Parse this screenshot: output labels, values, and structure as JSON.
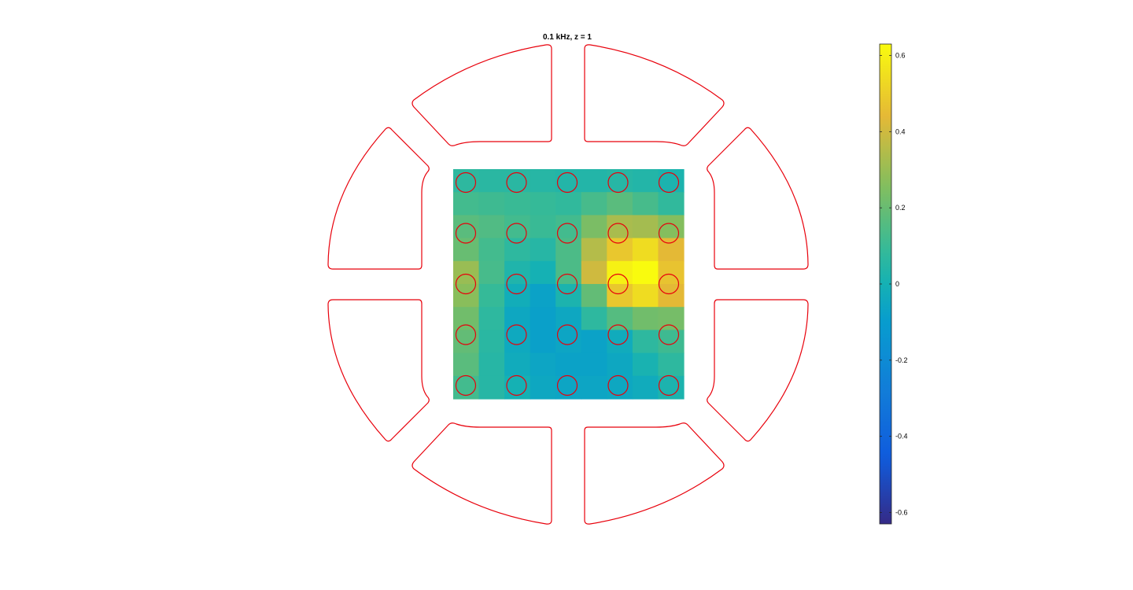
{
  "chart_data": {
    "type": "heatmap",
    "title": "0.1 kHz, z = 1",
    "xlabel": "",
    "ylabel": "",
    "grid": false,
    "clim": [
      -0.63,
      0.63
    ],
    "colormap": "parula",
    "colorbar": {
      "location": "right",
      "ticks": [
        0.6,
        0.4,
        0.2,
        0,
        -0.2,
        -0.4,
        -0.6
      ],
      "tick_labels": [
        "0.6",
        "0.4",
        "0.2",
        "0",
        "-0.2",
        "-0.4",
        "-0.6"
      ]
    },
    "values": [
      [
        0.07,
        0.06,
        0.06,
        0.05,
        0.04,
        0.04,
        0.05,
        0.04,
        0.02
      ],
      [
        0.12,
        0.11,
        0.1,
        0.09,
        0.08,
        0.13,
        0.17,
        0.13,
        0.08
      ],
      [
        0.17,
        0.15,
        0.12,
        0.1,
        0.12,
        0.24,
        0.33,
        0.32,
        0.26
      ],
      [
        0.2,
        0.12,
        0.07,
        0.05,
        0.14,
        0.35,
        0.48,
        0.54,
        0.44
      ],
      [
        0.3,
        0.13,
        0.03,
        0.0,
        0.14,
        0.4,
        0.6,
        0.63,
        0.47
      ],
      [
        0.27,
        0.09,
        -0.02,
        -0.07,
        0.02,
        0.19,
        0.48,
        0.54,
        0.44
      ],
      [
        0.22,
        0.07,
        -0.05,
        -0.08,
        -0.05,
        0.07,
        0.16,
        0.22,
        0.23
      ],
      [
        0.19,
        0.06,
        -0.04,
        -0.08,
        -0.06,
        -0.07,
        -0.03,
        0.07,
        0.11
      ],
      [
        0.17,
        0.05,
        -0.03,
        -0.06,
        -0.07,
        -0.07,
        -0.05,
        0.01,
        0.07
      ],
      [
        0.12,
        0.05,
        0.0,
        -0.05,
        -0.06,
        -0.06,
        -0.05,
        -0.03,
        0.02
      ]
    ],
    "markers": {
      "type": "circle",
      "color": "#e8000b",
      "rows": 5,
      "cols": 5
    },
    "outline_color": "#e8000b",
    "outline_segments": 8
  }
}
